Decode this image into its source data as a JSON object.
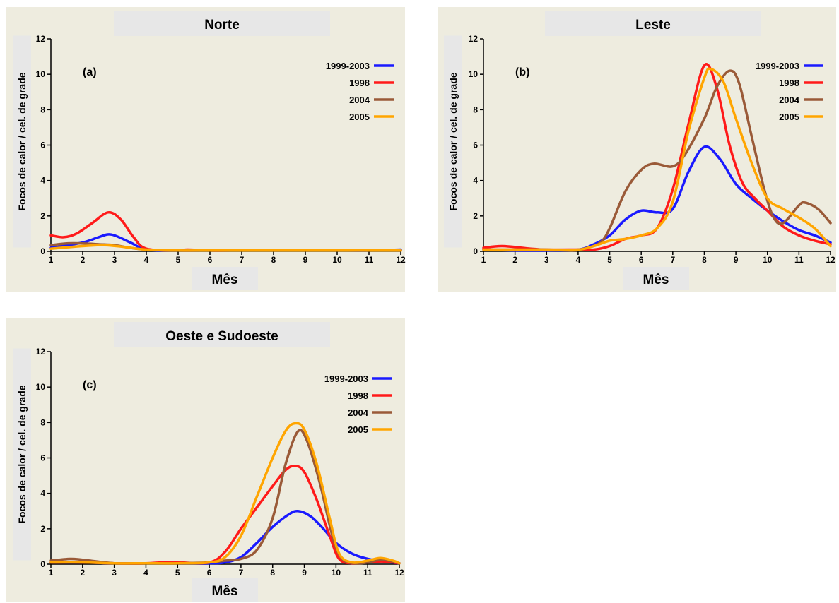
{
  "colors": {
    "1999-2003": "#1a1aff",
    "1998": "#ff1a1a",
    "2004": "#9a5a38",
    "2005": "#ffa500"
  },
  "chart_data": [
    {
      "type": "line",
      "title": "Norte",
      "panel_label": "(a)",
      "xlabel": "Mês",
      "ylabel": "Focos de calor / cel. de grade",
      "xlim": [
        1,
        12
      ],
      "ylim": [
        0,
        12
      ],
      "xticks": [
        1,
        2,
        3,
        4,
        5,
        6,
        7,
        8,
        9,
        10,
        11,
        12
      ],
      "yticks": [
        0,
        2,
        4,
        6,
        8,
        10,
        12
      ],
      "legend_position": "top-right",
      "grid": false,
      "series": [
        {
          "name": "1999-2003",
          "points": [
            [
              1,
              0.2
            ],
            [
              2,
              0.5
            ],
            [
              2.5,
              0.8
            ],
            [
              2.9,
              0.95
            ],
            [
              3.5,
              0.5
            ],
            [
              4,
              0.1
            ],
            [
              5,
              0.05
            ],
            [
              6,
              0.05
            ],
            [
              7,
              0.05
            ],
            [
              8,
              0.05
            ],
            [
              9,
              0.05
            ],
            [
              10,
              0.05
            ],
            [
              11,
              0.05
            ],
            [
              12,
              0.1
            ]
          ]
        },
        {
          "name": "1998",
          "points": [
            [
              1,
              0.9
            ],
            [
              1.4,
              0.8
            ],
            [
              1.8,
              1.0
            ],
            [
              2.3,
              1.6
            ],
            [
              2.8,
              2.2
            ],
            [
              3.2,
              1.8
            ],
            [
              3.6,
              0.8
            ],
            [
              4,
              0.15
            ],
            [
              5,
              0.05
            ],
            [
              5.3,
              0.1
            ],
            [
              6,
              0.05
            ],
            [
              7,
              0.05
            ],
            [
              8,
              0.05
            ],
            [
              9,
              0.05
            ],
            [
              10,
              0.05
            ],
            [
              11,
              0.05
            ],
            [
              12,
              0.05
            ]
          ]
        },
        {
          "name": "2004",
          "points": [
            [
              1,
              0.35
            ],
            [
              1.5,
              0.45
            ],
            [
              2,
              0.45
            ],
            [
              2.5,
              0.4
            ],
            [
              3,
              0.35
            ],
            [
              3.5,
              0.2
            ],
            [
              4,
              0.1
            ],
            [
              5,
              0.05
            ],
            [
              6,
              0.05
            ],
            [
              7,
              0.05
            ],
            [
              8,
              0.05
            ],
            [
              9,
              0.05
            ],
            [
              10,
              0.05
            ],
            [
              11,
              0.05
            ],
            [
              12,
              0.05
            ]
          ]
        },
        {
          "name": "2005",
          "points": [
            [
              1,
              0.15
            ],
            [
              2,
              0.3
            ],
            [
              2.7,
              0.35
            ],
            [
              3.3,
              0.25
            ],
            [
              4,
              0.1
            ],
            [
              5,
              0.05
            ],
            [
              6,
              0.05
            ],
            [
              7,
              0.05
            ],
            [
              8,
              0.05
            ],
            [
              9,
              0.05
            ],
            [
              10,
              0.05
            ],
            [
              11,
              0.05
            ],
            [
              12,
              0.05
            ]
          ]
        }
      ]
    },
    {
      "type": "line",
      "title": "Leste",
      "panel_label": "(b)",
      "xlabel": "Mês",
      "ylabel": "Focos de calor / cel. de grade",
      "xlim": [
        1,
        12
      ],
      "ylim": [
        0,
        12
      ],
      "xticks": [
        1,
        2,
        3,
        4,
        5,
        6,
        7,
        8,
        9,
        10,
        11,
        12
      ],
      "yticks": [
        0,
        2,
        4,
        6,
        8,
        10,
        12
      ],
      "legend_position": "top-right",
      "grid": false,
      "series": [
        {
          "name": "1999-2003",
          "points": [
            [
              1,
              0.1
            ],
            [
              2,
              0.05
            ],
            [
              3,
              0.05
            ],
            [
              4,
              0.1
            ],
            [
              4.5,
              0.4
            ],
            [
              5,
              0.9
            ],
            [
              5.5,
              1.8
            ],
            [
              6,
              2.3
            ],
            [
              6.5,
              2.2
            ],
            [
              7,
              2.4
            ],
            [
              7.5,
              4.5
            ],
            [
              8,
              5.9
            ],
            [
              8.5,
              5.2
            ],
            [
              9,
              3.8
            ],
            [
              9.5,
              3.0
            ],
            [
              10,
              2.3
            ],
            [
              10.5,
              1.7
            ],
            [
              11,
              1.2
            ],
            [
              11.5,
              0.9
            ],
            [
              12,
              0.5
            ]
          ]
        },
        {
          "name": "1998",
          "points": [
            [
              1,
              0.2
            ],
            [
              1.6,
              0.3
            ],
            [
              2.5,
              0.15
            ],
            [
              3,
              0.1
            ],
            [
              4,
              0.1
            ],
            [
              4.5,
              0.1
            ],
            [
              5,
              0.3
            ],
            [
              5.5,
              0.7
            ],
            [
              6,
              0.9
            ],
            [
              6.5,
              1.3
            ],
            [
              7,
              3.5
            ],
            [
              7.5,
              7.2
            ],
            [
              8,
              10.5
            ],
            [
              8.4,
              9.2
            ],
            [
              8.8,
              6.0
            ],
            [
              9.2,
              3.9
            ],
            [
              9.6,
              3.0
            ],
            [
              10,
              2.3
            ],
            [
              10.5,
              1.4
            ],
            [
              11,
              0.9
            ],
            [
              11.5,
              0.6
            ],
            [
              12,
              0.4
            ]
          ]
        },
        {
          "name": "2004",
          "points": [
            [
              1,
              0.1
            ],
            [
              2,
              0.1
            ],
            [
              3,
              0.1
            ],
            [
              3.8,
              0.05
            ],
            [
              4.2,
              0.15
            ],
            [
              4.7,
              0.5
            ],
            [
              5,
              1.3
            ],
            [
              5.5,
              3.4
            ],
            [
              6,
              4.6
            ],
            [
              6.4,
              4.95
            ],
            [
              7,
              4.8
            ],
            [
              7.4,
              5.5
            ],
            [
              8,
              7.5
            ],
            [
              8.4,
              9.3
            ],
            [
              8.8,
              10.2
            ],
            [
              9.1,
              9.5
            ],
            [
              9.5,
              6.5
            ],
            [
              9.9,
              3.5
            ],
            [
              10.2,
              1.9
            ],
            [
              10.5,
              1.6
            ],
            [
              11,
              2.6
            ],
            [
              11.2,
              2.75
            ],
            [
              11.6,
              2.4
            ],
            [
              12,
              1.6
            ]
          ]
        },
        {
          "name": "2005",
          "points": [
            [
              1,
              0.1
            ],
            [
              2,
              0.1
            ],
            [
              3,
              0.1
            ],
            [
              4,
              0.1
            ],
            [
              4.5,
              0.3
            ],
            [
              5,
              0.6
            ],
            [
              5.5,
              0.7
            ],
            [
              6,
              0.9
            ],
            [
              6.5,
              1.3
            ],
            [
              7,
              2.8
            ],
            [
              7.5,
              6.8
            ],
            [
              8,
              9.8
            ],
            [
              8.2,
              10.3
            ],
            [
              8.6,
              9.6
            ],
            [
              9,
              7.5
            ],
            [
              9.5,
              5.0
            ],
            [
              10,
              3.0
            ],
            [
              10.5,
              2.4
            ],
            [
              11,
              1.9
            ],
            [
              11.5,
              1.3
            ],
            [
              12,
              0.3
            ]
          ]
        }
      ]
    },
    {
      "type": "line",
      "title": "Oeste e Sudoeste",
      "panel_label": "(c)",
      "xlabel": "Mês",
      "ylabel": "Focos de calor / cel. de grade",
      "xlim": [
        1,
        12
      ],
      "ylim": [
        0,
        12
      ],
      "xticks": [
        1,
        2,
        3,
        4,
        5,
        6,
        7,
        8,
        9,
        10,
        11,
        12
      ],
      "yticks": [
        0,
        2,
        4,
        6,
        8,
        10,
        12
      ],
      "legend_position": "top-right",
      "grid": false,
      "series": [
        {
          "name": "1999-2003",
          "points": [
            [
              1,
              0.1
            ],
            [
              2,
              0.1
            ],
            [
              3,
              0.05
            ],
            [
              4,
              0.05
            ],
            [
              5,
              0.05
            ],
            [
              6,
              0.05
            ],
            [
              6.5,
              0.1
            ],
            [
              7,
              0.4
            ],
            [
              7.5,
              1.2
            ],
            [
              8,
              2.1
            ],
            [
              8.5,
              2.8
            ],
            [
              8.8,
              3.0
            ],
            [
              9.2,
              2.7
            ],
            [
              9.6,
              2.0
            ],
            [
              10,
              1.2
            ],
            [
              10.5,
              0.6
            ],
            [
              11,
              0.3
            ],
            [
              11.5,
              0.15
            ],
            [
              12,
              0.05
            ]
          ]
        },
        {
          "name": "1998",
          "points": [
            [
              1,
              0.1
            ],
            [
              2,
              0.1
            ],
            [
              3,
              0.05
            ],
            [
              4,
              0.05
            ],
            [
              4.5,
              0.1
            ],
            [
              5,
              0.1
            ],
            [
              6,
              0.1
            ],
            [
              6.5,
              0.7
            ],
            [
              7,
              2.0
            ],
            [
              7.5,
              3.2
            ],
            [
              8,
              4.4
            ],
            [
              8.4,
              5.3
            ],
            [
              8.7,
              5.55
            ],
            [
              9,
              5.2
            ],
            [
              9.4,
              3.6
            ],
            [
              9.8,
              1.6
            ],
            [
              10.1,
              0.3
            ],
            [
              10.5,
              0.05
            ],
            [
              11,
              0.1
            ],
            [
              11.5,
              0.15
            ],
            [
              12,
              0.05
            ]
          ]
        },
        {
          "name": "2004",
          "points": [
            [
              1,
              0.2
            ],
            [
              1.6,
              0.3
            ],
            [
              2,
              0.25
            ],
            [
              3,
              0.05
            ],
            [
              4,
              0.05
            ],
            [
              5,
              0.05
            ],
            [
              6,
              0.1
            ],
            [
              6.5,
              0.2
            ],
            [
              7,
              0.3
            ],
            [
              7.5,
              0.8
            ],
            [
              8,
              2.6
            ],
            [
              8.4,
              5.6
            ],
            [
              8.8,
              7.5
            ],
            [
              9.1,
              6.9
            ],
            [
              9.5,
              4.5
            ],
            [
              9.9,
              1.5
            ],
            [
              10.2,
              0.3
            ],
            [
              10.6,
              0.05
            ],
            [
              11,
              0.1
            ],
            [
              11.4,
              0.25
            ],
            [
              11.8,
              0.15
            ],
            [
              12,
              0.05
            ]
          ]
        },
        {
          "name": "2005",
          "points": [
            [
              1,
              0.1
            ],
            [
              2,
              0.1
            ],
            [
              3,
              0.05
            ],
            [
              4,
              0.05
            ],
            [
              5,
              0.05
            ],
            [
              6,
              0.1
            ],
            [
              6.5,
              0.4
            ],
            [
              7,
              1.6
            ],
            [
              7.5,
              3.8
            ],
            [
              8,
              6.0
            ],
            [
              8.4,
              7.5
            ],
            [
              8.7,
              7.95
            ],
            [
              9,
              7.6
            ],
            [
              9.4,
              5.6
            ],
            [
              9.8,
              2.6
            ],
            [
              10.1,
              0.6
            ],
            [
              10.5,
              0.1
            ],
            [
              11,
              0.2
            ],
            [
              11.4,
              0.35
            ],
            [
              11.8,
              0.2
            ],
            [
              12,
              0.05
            ]
          ]
        }
      ]
    }
  ]
}
